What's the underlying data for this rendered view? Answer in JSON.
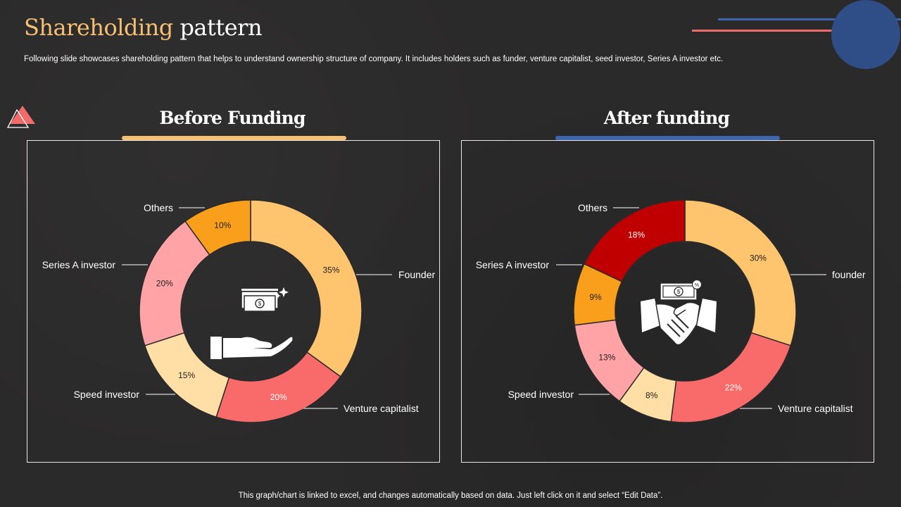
{
  "header": {
    "title_accent": "Shareholding",
    "title_rest": " pattern",
    "subtitle": "Following slide showcases shareholding pattern that helps to understand ownership structure of company. It includes holders such as funder, venture capitalist, seed investor, Series A investor etc."
  },
  "footer": "This graph/chart is linked to excel, and changes automatically based on data. Just left click on it and select “Edit Data”.",
  "colors": {
    "accent_orange": "#f7bf72",
    "accent_blue": "#3d66b0",
    "accent_red": "#f26b6b",
    "panel_border": "#e8e8e8"
  },
  "icons": {
    "before": "hand-holding-money-icon",
    "after": "handshake-money-icon"
  },
  "chart_data": [
    {
      "type": "pie",
      "variant": "donut",
      "title": "Before Funding",
      "categories": [
        "Founder",
        "Venture capitalist",
        "Speed investor",
        "Series A investor",
        "Others"
      ],
      "values": [
        35,
        20,
        15,
        20,
        10
      ],
      "value_labels": [
        "35%",
        "20%",
        "15%",
        "20%",
        "10%"
      ],
      "colors": [
        "#ffc56e",
        "#f96b6b",
        "#ffdfa6",
        "#ffa3a6",
        "#fa9f1b"
      ],
      "label_colors": [
        "#222222",
        "#ffffff",
        "#222222",
        "#222222",
        "#222222"
      ]
    },
    {
      "type": "pie",
      "variant": "donut",
      "title": "After funding",
      "categories": [
        "founder",
        "Venture capitalist",
        "",
        "Speed investor",
        "Series A investor",
        "Others"
      ],
      "values": [
        30,
        22,
        8,
        13,
        9,
        18
      ],
      "value_labels": [
        "30%",
        "22%",
        "8%",
        "13%",
        "9%",
        "18%"
      ],
      "colors": [
        "#ffc56e",
        "#f96b6b",
        "#ffdfa6",
        "#ffa3a6",
        "#fa9f1b",
        "#c00000"
      ],
      "label_colors": [
        "#222222",
        "#ffffff",
        "#222222",
        "#222222",
        "#222222",
        "#ffffff"
      ]
    }
  ]
}
